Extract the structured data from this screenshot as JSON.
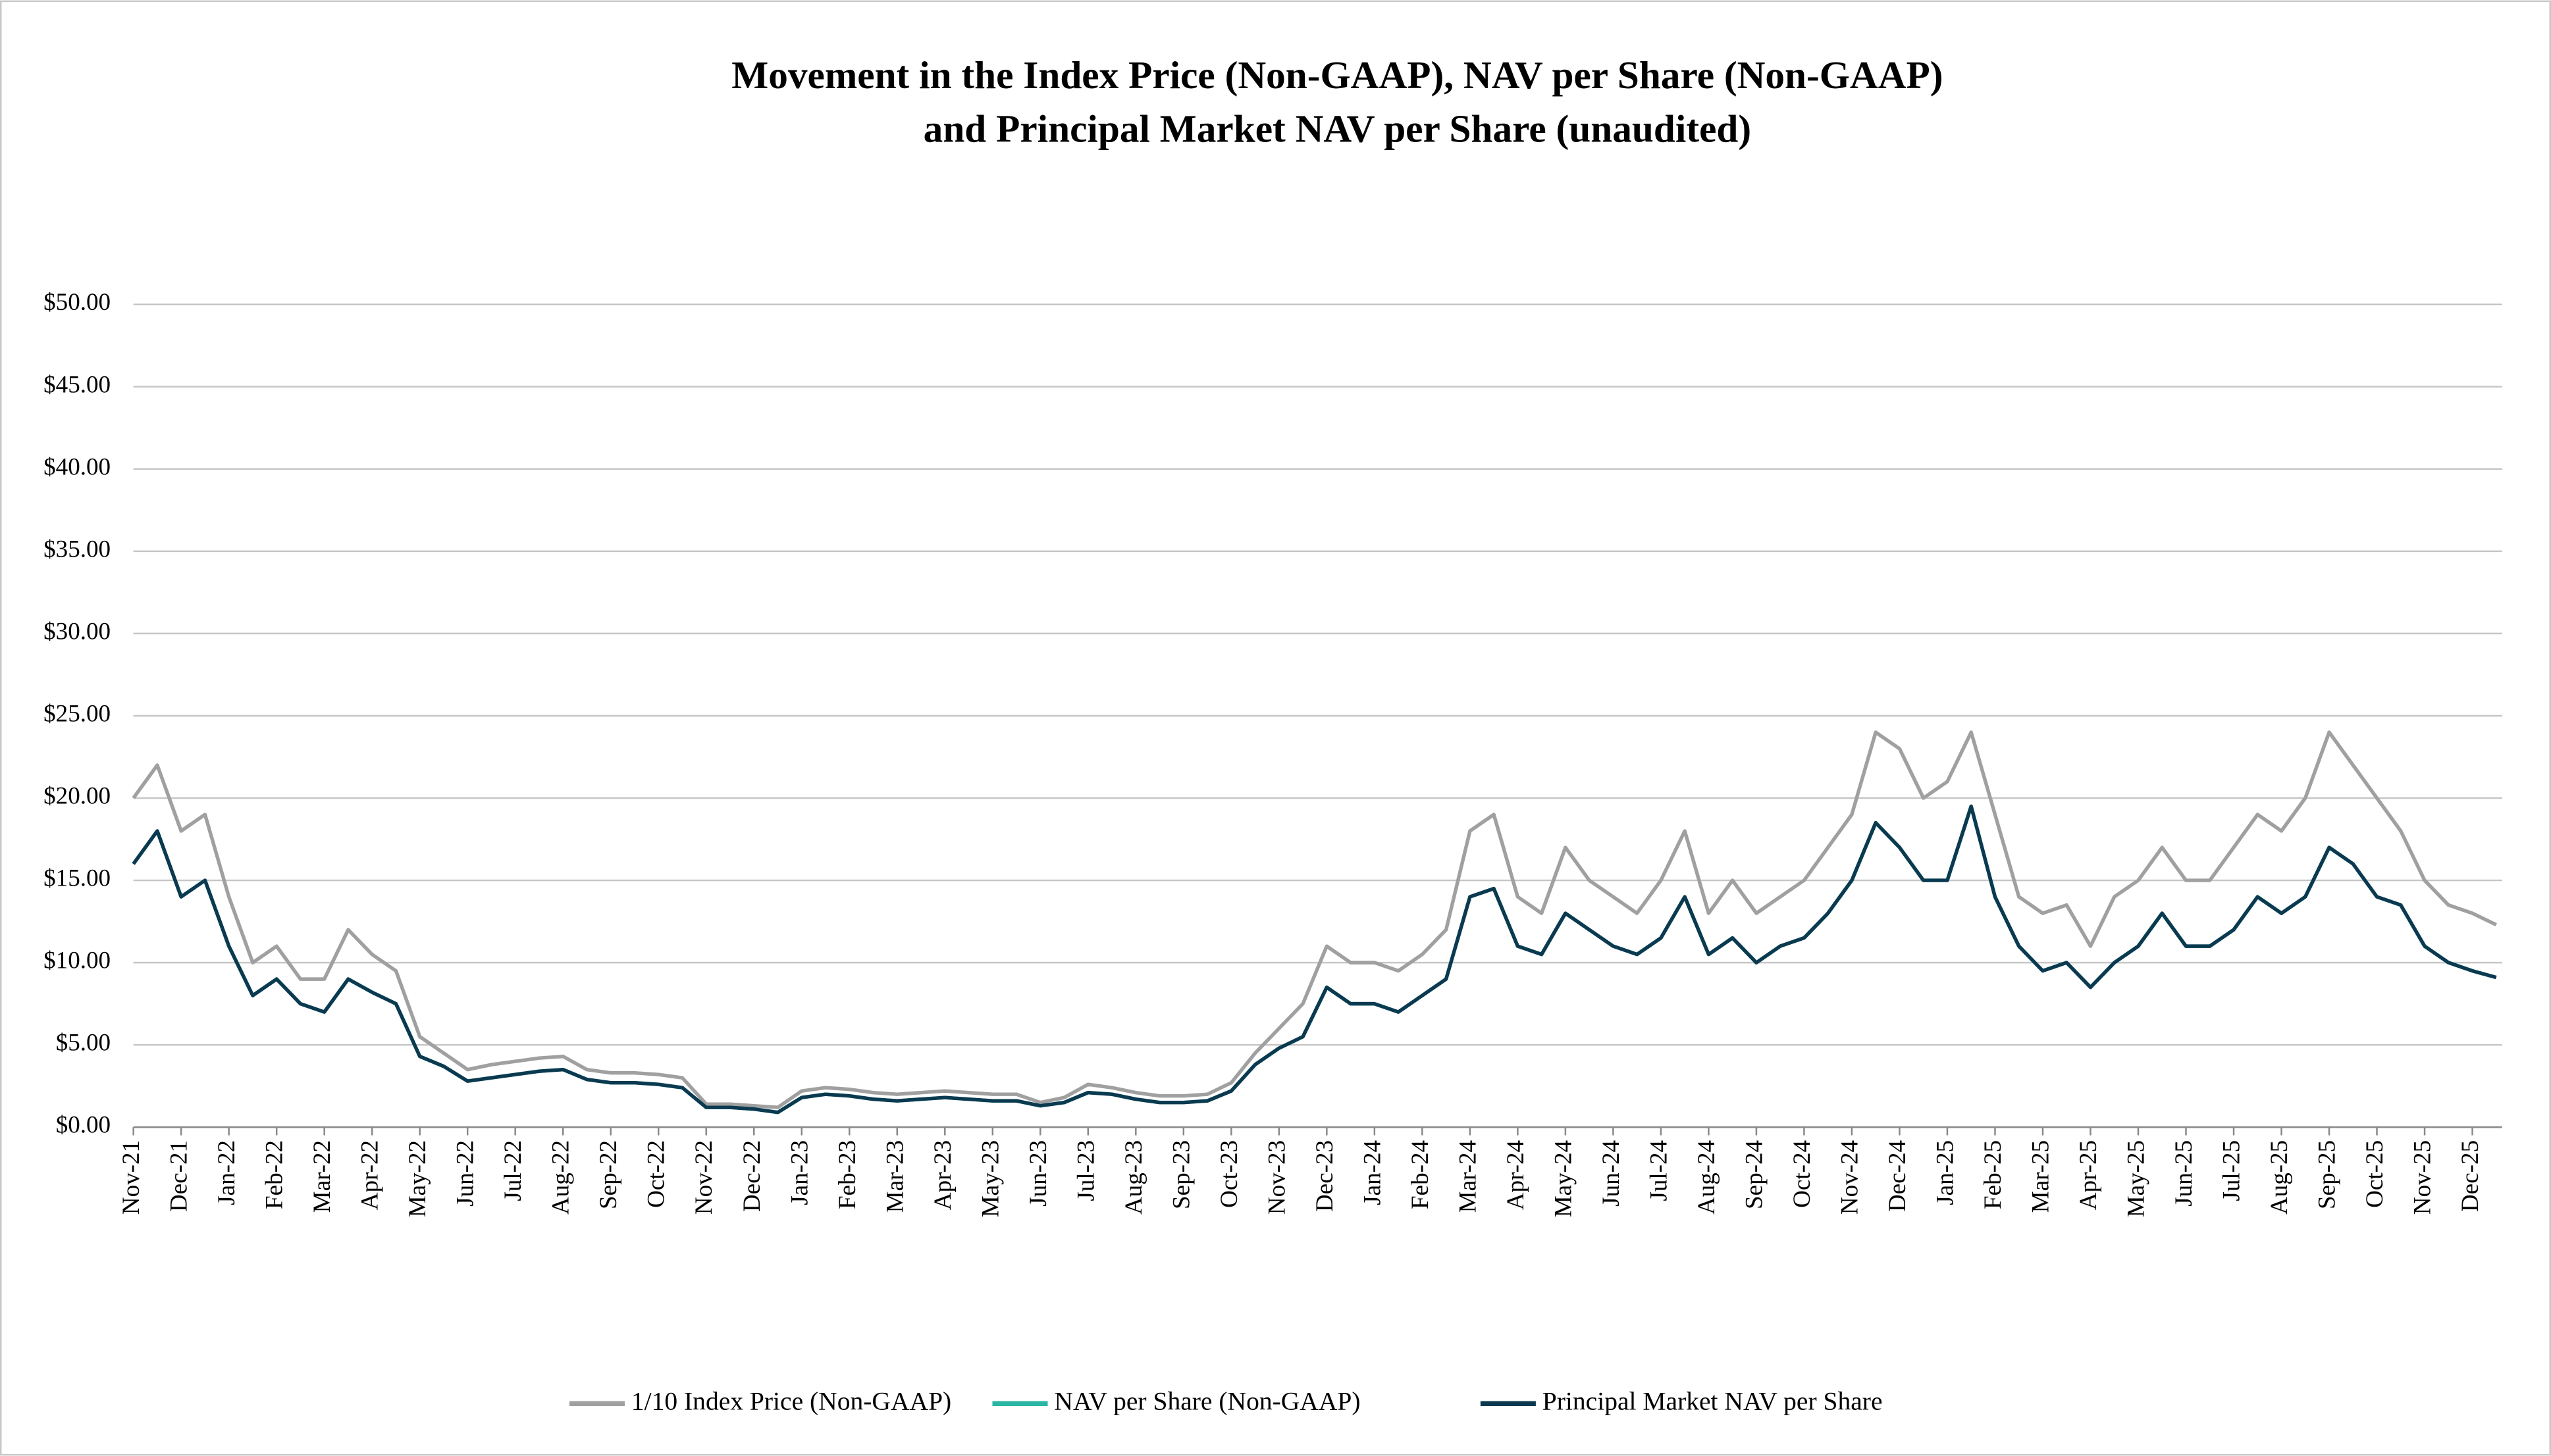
{
  "chart_data": {
    "type": "line",
    "title": [
      "Movement in the Index Price (Non-GAAP), NAV per Share (Non-GAAP)",
      "and Principal Market NAV per Share (unaudited)"
    ],
    "categories": [
      "Nov-21",
      null,
      "Dec-21",
      null,
      "Jan-22",
      null,
      "Feb-22",
      null,
      "Mar-22",
      null,
      "Apr-22",
      null,
      "May-22",
      null,
      "Jun-22",
      null,
      "Jul-22",
      null,
      "Aug-22",
      null,
      "Sep-22",
      null,
      "Oct-22",
      null,
      "Nov-22",
      null,
      "Dec-22",
      null,
      "Jan-23",
      null,
      "Feb-23",
      null,
      "Mar-23",
      null,
      "Apr-23",
      null,
      "May-23",
      null,
      "Jun-23",
      null,
      "Jul-23",
      null,
      "Aug-23",
      null,
      "Sep-23",
      null,
      "Oct-23",
      null,
      "Nov-23",
      null,
      "Dec-23",
      null,
      "Jan-24",
      null,
      "Feb-24",
      null,
      "Mar-24",
      null,
      "Apr-24",
      null,
      "May-24",
      null,
      "Jun-24",
      null,
      "Jul-24",
      null,
      "Aug-24",
      null,
      "Sep-24",
      null,
      "Oct-24",
      null,
      "Nov-24",
      null,
      "Dec-24",
      null,
      "Jan-25",
      null,
      "Feb-25",
      null,
      "Mar-25",
      null,
      "Apr-25",
      null,
      "May-25",
      null,
      "Jun-25",
      null,
      "Jul-25",
      null,
      "Aug-25",
      null,
      "Sep-25",
      null,
      "Oct-25",
      null,
      "Nov-25",
      null,
      "Dec-25",
      null
    ],
    "series": [
      {
        "name": "1/10 Index Price (Non-GAAP)",
        "color": "#a0a0a0",
        "values": [
          20,
          22,
          18,
          19,
          14,
          10,
          11,
          9,
          9,
          12,
          10.5,
          9.5,
          5.5,
          4.5,
          3.5,
          3.8,
          4,
          4.2,
          4.3,
          3.5,
          3.3,
          3.3,
          3.2,
          3,
          1.4,
          1.4,
          1.3,
          1.2,
          2.2,
          2.4,
          2.3,
          2.1,
          2,
          2.1,
          2.2,
          2.1,
          2,
          2,
          1.5,
          1.8,
          2.6,
          2.4,
          2.1,
          1.9,
          1.9,
          2,
          2.7,
          4.5,
          6,
          7.5,
          11,
          10,
          10,
          9.5,
          10.5,
          12,
          18,
          19,
          14,
          13,
          17,
          15,
          14,
          13,
          15,
          18,
          13,
          15,
          13,
          14,
          15,
          17,
          19,
          24,
          23,
          20,
          21,
          24,
          19,
          14,
          13,
          13.5,
          11,
          14,
          15,
          17,
          15,
          15,
          17,
          19,
          18,
          20,
          24,
          22,
          20,
          18,
          15,
          13.5,
          13,
          12.3
        ]
      },
      {
        "name": "NAV per Share (Non-GAAP)",
        "color": "#2bb5a5",
        "values": [
          16,
          18,
          14,
          15,
          11,
          8,
          9,
          7.5,
          7,
          9,
          8.2,
          7.5,
          4.3,
          3.7,
          2.8,
          3,
          3.2,
          3.4,
          3.5,
          2.9,
          2.7,
          2.7,
          2.6,
          2.4,
          1.2,
          1.2,
          1.1,
          0.9,
          1.8,
          2,
          1.9,
          1.7,
          1.6,
          1.7,
          1.8,
          1.7,
          1.6,
          1.6,
          1.3,
          1.5,
          2.1,
          2,
          1.7,
          1.5,
          1.5,
          1.6,
          2.2,
          3.8,
          4.8,
          5.5,
          8.5,
          7.5,
          7.5,
          7,
          8,
          9,
          14,
          14.5,
          11,
          10.5,
          13,
          12,
          11,
          10.5,
          11.5,
          14,
          10.5,
          11.5,
          10,
          11,
          11.5,
          13,
          15,
          18.5,
          17,
          15,
          15,
          19.5,
          14,
          11,
          9.5,
          10,
          8.5,
          10,
          11,
          13,
          11,
          11,
          12,
          14,
          13,
          14,
          17,
          16,
          14,
          13.5,
          11,
          10,
          9.5,
          9.1
        ]
      },
      {
        "name": "Principal Market NAV per Share",
        "color": "#0b3a50",
        "values": [
          16,
          18,
          14,
          15,
          11,
          8,
          9,
          7.5,
          7,
          9,
          8.2,
          7.5,
          4.3,
          3.7,
          2.8,
          3,
          3.2,
          3.4,
          3.5,
          2.9,
          2.7,
          2.7,
          2.6,
          2.4,
          1.2,
          1.2,
          1.1,
          0.9,
          1.8,
          2,
          1.9,
          1.7,
          1.6,
          1.7,
          1.8,
          1.7,
          1.6,
          1.6,
          1.3,
          1.5,
          2.1,
          2,
          1.7,
          1.5,
          1.5,
          1.6,
          2.2,
          3.8,
          4.8,
          5.5,
          8.5,
          7.5,
          7.5,
          7,
          8,
          9,
          14,
          14.5,
          11,
          10.5,
          13,
          12,
          11,
          10.5,
          11.5,
          14,
          10.5,
          11.5,
          10,
          11,
          11.5,
          13,
          15,
          18.5,
          17,
          15,
          15,
          19.5,
          14,
          11,
          9.5,
          10,
          8.5,
          10,
          11,
          13,
          11,
          11,
          12,
          14,
          13,
          14,
          17,
          16,
          14,
          13.5,
          11,
          10,
          9.5,
          9.1
        ]
      }
    ],
    "ylim": [
      0,
      50
    ],
    "yticks": [
      {
        "value": 0,
        "label": "$0.00"
      },
      {
        "value": 5,
        "label": "$5.00"
      },
      {
        "value": 10,
        "label": "$10.00"
      },
      {
        "value": 15,
        "label": "$15.00"
      },
      {
        "value": 20,
        "label": "$20.00"
      },
      {
        "value": 25,
        "label": "$25.00"
      },
      {
        "value": 30,
        "label": "$30.00"
      },
      {
        "value": 35,
        "label": "$35.00"
      },
      {
        "value": 40,
        "label": "$40.00"
      },
      {
        "value": 45,
        "label": "$45.00"
      },
      {
        "value": 50,
        "label": "$50.00"
      }
    ],
    "grid": true,
    "legend": "bottom"
  }
}
